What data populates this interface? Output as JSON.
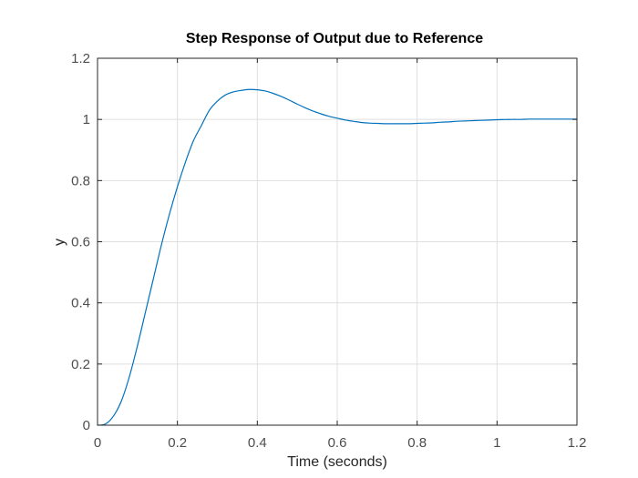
{
  "chart_data": {
    "type": "line",
    "title": "Step Response of Output due to Reference",
    "xlabel": "Time (seconds)",
    "ylabel": "y",
    "xlim": [
      0,
      1.2
    ],
    "ylim": [
      0,
      1.2
    ],
    "xticks": [
      0,
      0.2,
      0.4,
      0.6,
      0.8,
      1,
      1.2
    ],
    "yticks": [
      0,
      0.2,
      0.4,
      0.6,
      0.8,
      1,
      1.2
    ],
    "xtick_labels": [
      "0",
      "0.2",
      "0.4",
      "0.6",
      "0.8",
      "1",
      "1.2"
    ],
    "ytick_labels": [
      "0",
      "0.2",
      "0.4",
      "0.6",
      "0.8",
      "1",
      "1.2"
    ],
    "grid": true,
    "colors": {
      "line": "#0072bd"
    },
    "series": [
      {
        "x": [
          0,
          0.02,
          0.04,
          0.06,
          0.08,
          0.1,
          0.12,
          0.14,
          0.16,
          0.18,
          0.2,
          0.22,
          0.24,
          0.26,
          0.28,
          0.3,
          0.32,
          0.34,
          0.36,
          0.38,
          0.4,
          0.42,
          0.44,
          0.46,
          0.48,
          0.5,
          0.52,
          0.54,
          0.56,
          0.58,
          0.6,
          0.62,
          0.64,
          0.66,
          0.68,
          0.7,
          0.72,
          0.74,
          0.76,
          0.78,
          0.8,
          0.82,
          0.84,
          0.86,
          0.88,
          0.9,
          0.92,
          0.94,
          0.96,
          0.98,
          1.0,
          1.02,
          1.04,
          1.06,
          1.08,
          1.1,
          1.12,
          1.14,
          1.16,
          1.18,
          1.2
        ],
        "y": [
          0,
          0.004,
          0.03,
          0.08,
          0.16,
          0.26,
          0.37,
          0.48,
          0.59,
          0.69,
          0.78,
          0.86,
          0.93,
          0.98,
          1.03,
          1.06,
          1.08,
          1.09,
          1.095,
          1.098,
          1.097,
          1.093,
          1.085,
          1.075,
          1.063,
          1.05,
          1.038,
          1.027,
          1.018,
          1.01,
          1.004,
          0.998,
          0.994,
          0.99,
          0.988,
          0.987,
          0.986,
          0.986,
          0.986,
          0.986,
          0.987,
          0.988,
          0.989,
          0.991,
          0.992,
          0.994,
          0.995,
          0.996,
          0.997,
          0.998,
          0.999,
          0.9995,
          1.0,
          1.0,
          1.001,
          1.001,
          1.001,
          1.001,
          1.001,
          1.001,
          1.001
        ]
      }
    ]
  }
}
